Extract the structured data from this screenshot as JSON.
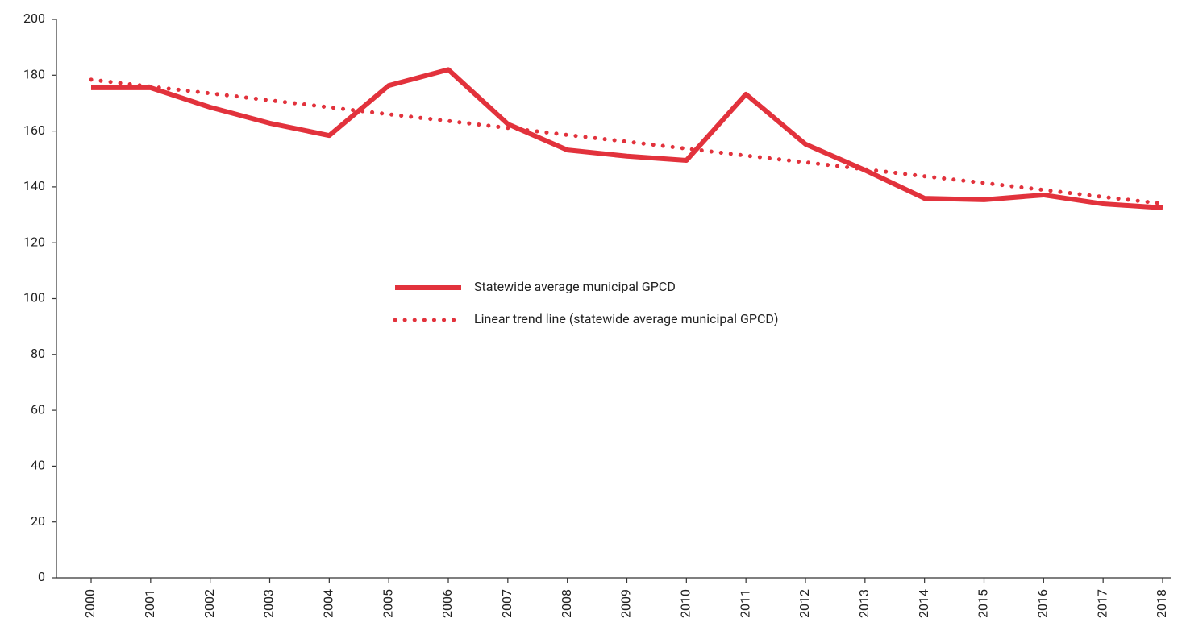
{
  "chart_data": {
    "type": "line",
    "categories": [
      "2000",
      "2001",
      "2002",
      "2003",
      "2004",
      "2005",
      "2006",
      "2007",
      "2008",
      "2009",
      "2010",
      "2011",
      "2012",
      "2013",
      "2014",
      "2015",
      "2016",
      "2017",
      "2018"
    ],
    "series": [
      {
        "name": "Statewide average municipal GPCD",
        "color": "#e2323c",
        "line_style": "solid",
        "values": [
          175.5,
          175.5,
          168.5,
          162.8,
          158.4,
          176.3,
          182,
          162.5,
          153.2,
          151,
          149.5,
          173.2,
          155.3,
          146,
          135.9,
          135.4,
          137.1,
          133.9,
          132.5
        ]
      },
      {
        "name": "Linear trend line (statewide average municipal GPCD)",
        "color": "#e2323c",
        "line_style": "dotted",
        "values": [
          178.4,
          175.9,
          173.5,
          171.0,
          168.5,
          166.0,
          163.6,
          161.1,
          158.6,
          156.2,
          153.7,
          151.2,
          148.8,
          146.3,
          143.8,
          141.4,
          138.9,
          136.4,
          134.0
        ]
      }
    ],
    "ylim": [
      0,
      200
    ],
    "yticks": [
      0,
      20,
      40,
      60,
      80,
      100,
      120,
      140,
      160,
      180,
      200
    ],
    "grid": false,
    "legend": "center"
  }
}
